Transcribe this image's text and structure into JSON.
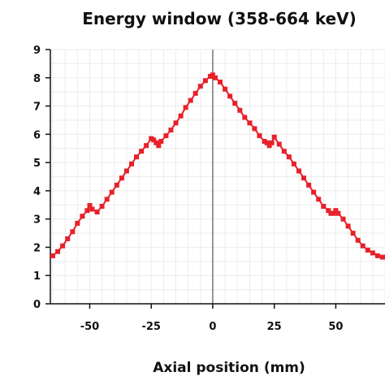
{
  "chart_data": {
    "type": "line",
    "title": "Energy window (358-664 keV)",
    "xlabel": "Axial position (mm)",
    "ylabel": "",
    "xlim": [
      -66,
      70
    ],
    "ylim": [
      0,
      9
    ],
    "xticks": [
      -50,
      -25,
      0,
      25,
      50
    ],
    "xtick_labels": [
      "-50",
      "-25",
      "0",
      "25",
      "50"
    ],
    "yticks": [
      0,
      1,
      2,
      3,
      4,
      5,
      6,
      7,
      8,
      9
    ],
    "ytick_labels": [
      "0",
      "1",
      "2",
      "3",
      "4",
      "5",
      "6",
      "7",
      "8",
      "9"
    ],
    "grid": true,
    "series_color": "#e8202a",
    "series": [
      {
        "name": "",
        "x": [
          -65,
          -63,
          -61,
          -59,
          -57,
          -55,
          -53,
          -51,
          -50,
          -49,
          -47,
          -45,
          -43,
          -41,
          -39,
          -37,
          -35,
          -33,
          -31,
          -29,
          -27,
          -25,
          -24,
          -23,
          -22,
          -21,
          -19,
          -17,
          -15,
          -13,
          -11,
          -9,
          -7,
          -5,
          -3,
          -1,
          0,
          1,
          3,
          5,
          7,
          9,
          11,
          13,
          15,
          17,
          19,
          21,
          22,
          23,
          24,
          25,
          27,
          29,
          31,
          33,
          35,
          37,
          39,
          41,
          43,
          45,
          47,
          48,
          49,
          50,
          51,
          53,
          55,
          57,
          59,
          61,
          63,
          65,
          67,
          69
        ],
        "y": [
          1.7,
          1.85,
          2.05,
          2.3,
          2.55,
          2.85,
          3.1,
          3.3,
          3.48,
          3.35,
          3.25,
          3.45,
          3.7,
          3.95,
          4.2,
          4.45,
          4.7,
          4.95,
          5.2,
          5.4,
          5.6,
          5.85,
          5.8,
          5.7,
          5.6,
          5.75,
          5.95,
          6.15,
          6.4,
          6.65,
          6.95,
          7.2,
          7.45,
          7.7,
          7.9,
          8.05,
          8.1,
          8.0,
          7.85,
          7.6,
          7.35,
          7.1,
          6.85,
          6.6,
          6.4,
          6.2,
          5.95,
          5.75,
          5.7,
          5.6,
          5.7,
          5.9,
          5.65,
          5.4,
          5.2,
          4.95,
          4.7,
          4.45,
          4.2,
          3.95,
          3.7,
          3.45,
          3.3,
          3.2,
          3.2,
          3.3,
          3.2,
          3.0,
          2.75,
          2.5,
          2.25,
          2.05,
          1.9,
          1.8,
          1.7,
          1.65
        ]
      }
    ]
  }
}
